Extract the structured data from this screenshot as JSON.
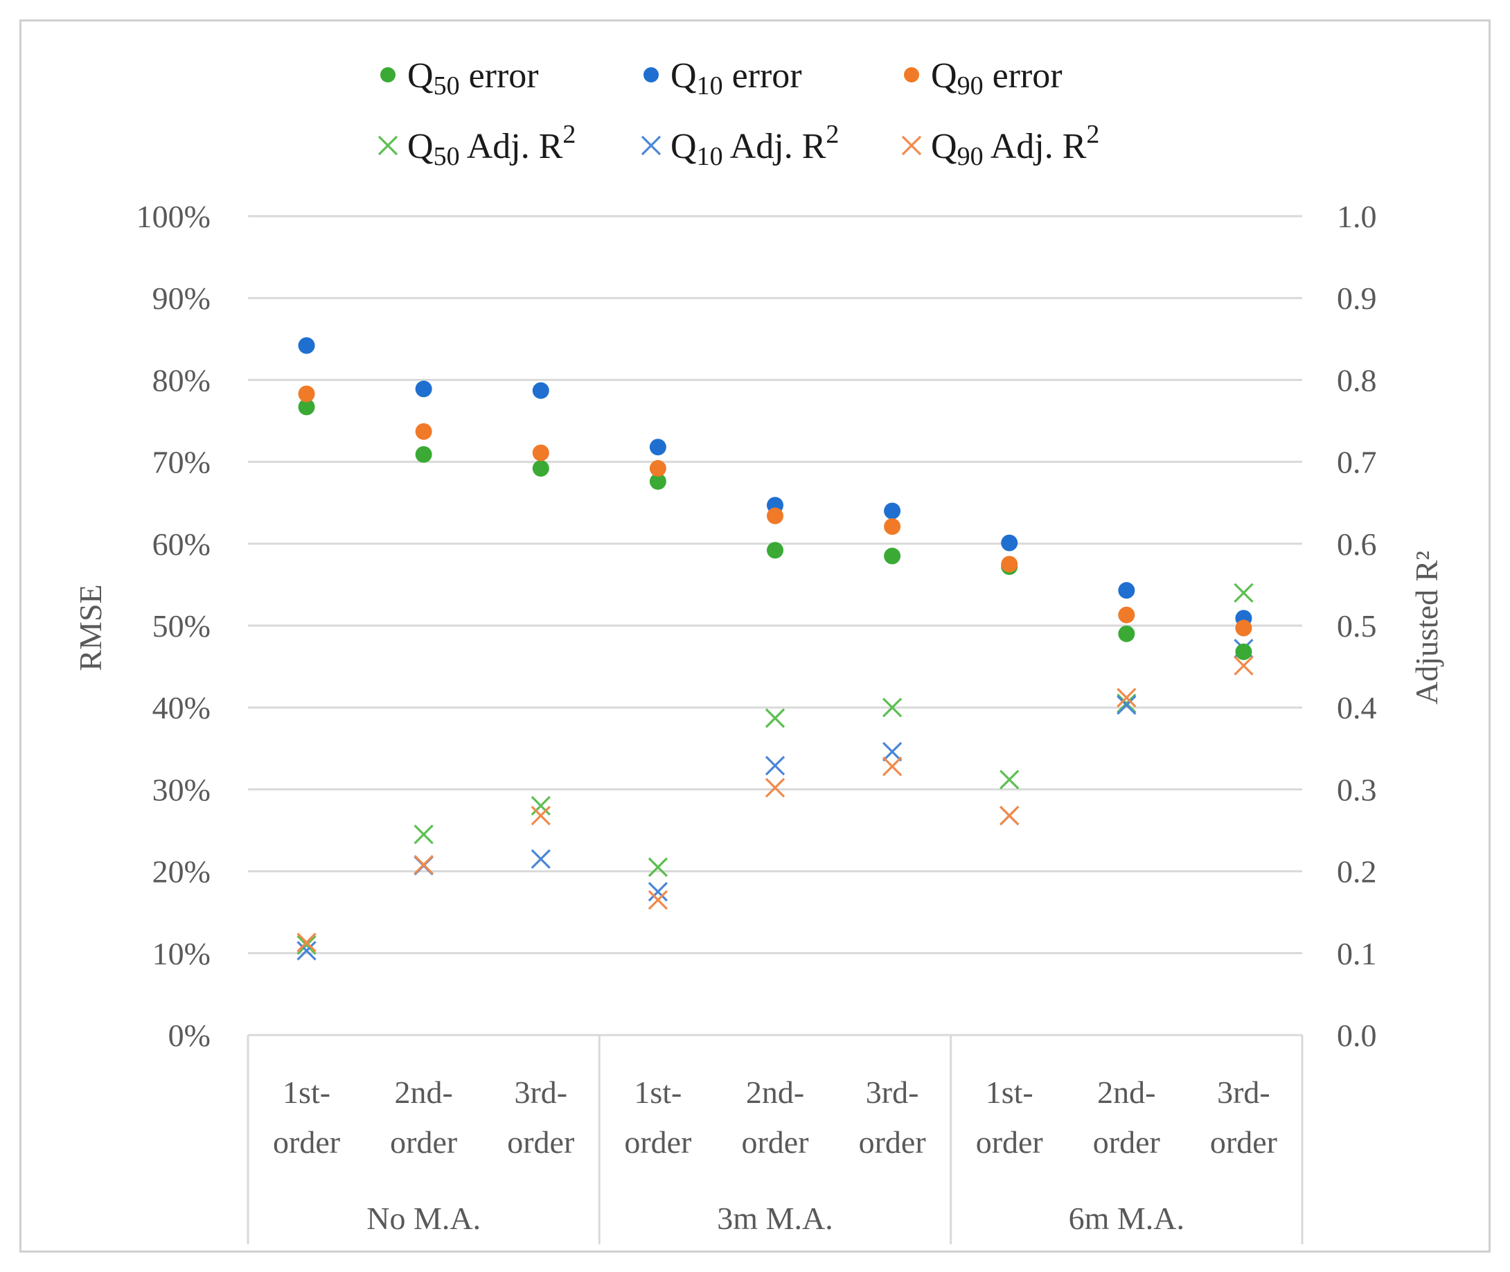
{
  "chart_data": {
    "type": "scatter",
    "title": "",
    "left_axis": {
      "title": "RMSE",
      "ticks": [
        "0%",
        "10%",
        "20%",
        "30%",
        "40%",
        "50%",
        "60%",
        "70%",
        "80%",
        "90%",
        "100%"
      ],
      "range": [
        0,
        1.0
      ]
    },
    "right_axis": {
      "title": "Adjusted R²",
      "ticks": [
        "0.0",
        "0.1",
        "0.2",
        "0.3",
        "0.4",
        "0.5",
        "0.6",
        "0.7",
        "0.8",
        "0.9",
        "1.0"
      ],
      "range": [
        0,
        1.0
      ]
    },
    "category_lines": [
      [
        "1st-",
        "order"
      ],
      [
        "2nd-",
        "order"
      ],
      [
        "3rd-",
        "order"
      ],
      [
        "1st-",
        "order"
      ],
      [
        "2nd-",
        "order"
      ],
      [
        "3rd-",
        "order"
      ],
      [
        "1st-",
        "order"
      ],
      [
        "2nd-",
        "order"
      ],
      [
        "3rd-",
        "order"
      ]
    ],
    "groups": [
      "No M.A.",
      "3m M.A.",
      "6m M.A."
    ],
    "grid": true,
    "legend_position": "top",
    "series": [
      {
        "name": "Q50 error",
        "label_q": "Q",
        "label_sub": "50",
        "label_rest": " error",
        "marker": "dot",
        "color": "#3aaa35",
        "axis": "left",
        "values": [
          0.767,
          0.709,
          0.692,
          0.676,
          0.592,
          0.585,
          0.572,
          0.49,
          0.468
        ]
      },
      {
        "name": "Q10 error",
        "label_q": "Q",
        "label_sub": "10",
        "label_rest": " error",
        "marker": "dot",
        "color": "#1f6fd0",
        "axis": "left",
        "values": [
          0.842,
          0.789,
          0.787,
          0.718,
          0.647,
          0.64,
          0.601,
          0.543,
          0.509
        ]
      },
      {
        "name": "Q90 error",
        "label_q": "Q",
        "label_sub": "90",
        "label_rest": " error",
        "marker": "dot",
        "color": "#f07a28",
        "axis": "left",
        "values": [
          0.783,
          0.737,
          0.711,
          0.692,
          0.634,
          0.621,
          0.575,
          0.513,
          0.497
        ]
      },
      {
        "name": "Q50 Adj. R2",
        "label_q": "Q",
        "label_sub": "50",
        "label_rest": " Adj. R",
        "label_sup": "2",
        "marker": "x",
        "color": "#5cbf52",
        "axis": "right",
        "values": [
          0.11,
          0.245,
          0.28,
          0.205,
          0.387,
          0.4,
          0.312,
          0.405,
          0.54
        ]
      },
      {
        "name": "Q10 Adj. R2",
        "label_q": "Q",
        "label_sub": "10",
        "label_rest": " Adj. R",
        "label_sup": "2",
        "marker": "x",
        "color": "#4a86d8",
        "axis": "right",
        "values": [
          0.103,
          0.207,
          0.215,
          0.175,
          0.329,
          0.346,
          0.268,
          0.403,
          0.472
        ]
      },
      {
        "name": "Q90 Adj. R2",
        "label_q": "Q",
        "label_sub": "90",
        "label_rest": " Adj. R",
        "label_sup": "2",
        "marker": "x",
        "color": "#f08a4b",
        "axis": "right",
        "values": [
          0.113,
          0.208,
          0.268,
          0.165,
          0.302,
          0.328,
          0.268,
          0.412,
          0.451
        ]
      }
    ]
  }
}
